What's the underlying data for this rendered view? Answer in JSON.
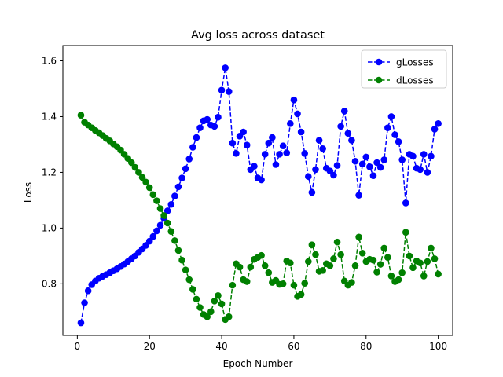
{
  "chart_data": {
    "type": "line",
    "title": "Avg loss across dataset",
    "xlabel": "Epoch Number",
    "ylabel": "Loss",
    "xlim": [
      -4,
      104
    ],
    "ylim": [
      0.615,
      1.655
    ],
    "xticks": [
      0,
      20,
      40,
      60,
      80,
      100
    ],
    "yticks": [
      0.8,
      1.0,
      1.2,
      1.4,
      1.6
    ],
    "xtick_labels": [
      "0",
      "20",
      "40",
      "60",
      "80",
      "100"
    ],
    "ytick_labels": [
      "0.8",
      "1.0",
      "1.2",
      "1.4",
      "1.6"
    ],
    "grid": false,
    "legend_position": "upper right",
    "x": [
      1,
      2,
      3,
      4,
      5,
      6,
      7,
      8,
      9,
      10,
      11,
      12,
      13,
      14,
      15,
      16,
      17,
      18,
      19,
      20,
      21,
      22,
      23,
      24,
      25,
      26,
      27,
      28,
      29,
      30,
      31,
      32,
      33,
      34,
      35,
      36,
      37,
      38,
      39,
      40,
      41,
      42,
      43,
      44,
      45,
      46,
      47,
      48,
      49,
      50,
      51,
      52,
      53,
      54,
      55,
      56,
      57,
      58,
      59,
      60,
      61,
      62,
      63,
      64,
      65,
      66,
      67,
      68,
      69,
      70,
      71,
      72,
      73,
      74,
      75,
      76,
      77,
      78,
      79,
      80,
      81,
      82,
      83,
      84,
      85,
      86,
      87,
      88,
      89,
      90,
      91,
      92,
      93,
      94,
      95,
      96,
      97,
      98,
      99,
      100
    ],
    "series": [
      {
        "name": "gLosses",
        "color": "#0000ff",
        "linestyle": "dashed",
        "marker": "circle",
        "values": [
          0.66,
          0.732,
          0.775,
          0.797,
          0.81,
          0.82,
          0.827,
          0.833,
          0.84,
          0.847,
          0.854,
          0.862,
          0.871,
          0.88,
          0.89,
          0.9,
          0.913,
          0.925,
          0.938,
          0.953,
          0.97,
          0.99,
          1.01,
          1.035,
          1.062,
          1.085,
          1.115,
          1.148,
          1.18,
          1.213,
          1.248,
          1.29,
          1.325,
          1.36,
          1.385,
          1.39,
          1.37,
          1.365,
          1.398,
          1.495,
          1.575,
          1.49,
          1.305,
          1.268,
          1.33,
          1.345,
          1.298,
          1.21,
          1.222,
          1.18,
          1.173,
          1.265,
          1.305,
          1.325,
          1.228,
          1.265,
          1.295,
          1.27,
          1.375,
          1.46,
          1.41,
          1.345,
          1.268,
          1.185,
          1.128,
          1.21,
          1.315,
          1.285,
          1.215,
          1.205,
          1.19,
          1.225,
          1.365,
          1.42,
          1.34,
          1.315,
          1.24,
          1.118,
          1.23,
          1.255,
          1.22,
          1.188,
          1.235,
          1.218,
          1.245,
          1.36,
          1.4,
          1.335,
          1.31,
          1.245,
          1.09,
          1.265,
          1.258,
          1.215,
          1.21,
          1.265,
          1.2,
          1.258,
          1.355,
          1.375
        ]
      },
      {
        "name": "dLosses",
        "color": "#008000",
        "linestyle": "dashed",
        "marker": "circle",
        "values": [
          1.405,
          1.38,
          1.37,
          1.36,
          1.35,
          1.342,
          1.332,
          1.322,
          1.313,
          1.302,
          1.292,
          1.28,
          1.265,
          1.25,
          1.235,
          1.218,
          1.2,
          1.182,
          1.165,
          1.145,
          1.12,
          1.098,
          1.07,
          1.045,
          1.018,
          0.988,
          0.955,
          0.92,
          0.885,
          0.85,
          0.815,
          0.78,
          0.745,
          0.715,
          0.69,
          0.682,
          0.7,
          0.738,
          0.758,
          0.728,
          0.672,
          0.682,
          0.795,
          0.872,
          0.86,
          0.815,
          0.808,
          0.86,
          0.888,
          0.895,
          0.902,
          0.865,
          0.84,
          0.805,
          0.812,
          0.798,
          0.8,
          0.882,
          0.875,
          0.795,
          0.755,
          0.762,
          0.802,
          0.88,
          0.94,
          0.905,
          0.845,
          0.848,
          0.872,
          0.865,
          0.89,
          0.95,
          0.905,
          0.81,
          0.795,
          0.805,
          0.865,
          0.968,
          0.91,
          0.88,
          0.888,
          0.885,
          0.842,
          0.87,
          0.928,
          0.895,
          0.828,
          0.808,
          0.815,
          0.84,
          0.985,
          0.9,
          0.858,
          0.882,
          0.875,
          0.828,
          0.88,
          0.928,
          0.89,
          0.835
        ]
      }
    ]
  }
}
